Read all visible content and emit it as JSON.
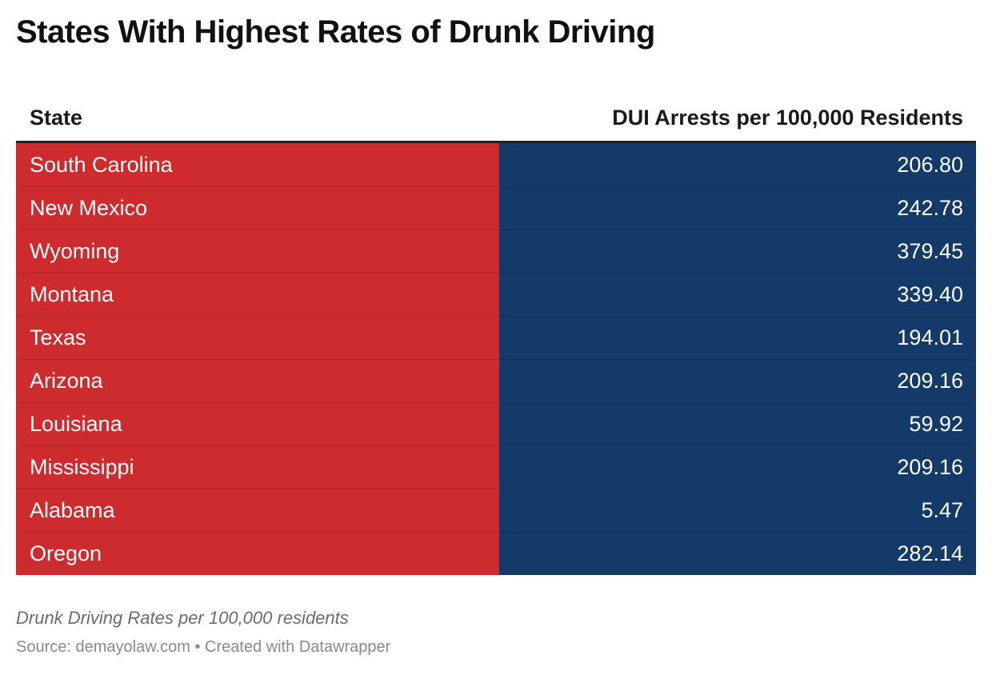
{
  "title": "States With Highest Rates of Drunk Driving",
  "colors": {
    "state_column_bg": "#ce2b2e",
    "value_column_bg": "#133a69",
    "header_rule": "#222222"
  },
  "chart_data": {
    "type": "table",
    "title": "States With Highest Rates of Drunk Driving",
    "columns": [
      "State",
      "DUI Arrests per 100,000 Residents"
    ],
    "rows": [
      {
        "state": "South Carolina",
        "value": "206.80"
      },
      {
        "state": "New Mexico",
        "value": "242.78"
      },
      {
        "state": "Wyoming",
        "value": "379.45"
      },
      {
        "state": "Montana",
        "value": "339.40"
      },
      {
        "state": "Texas",
        "value": "194.01"
      },
      {
        "state": "Arizona",
        "value": "209.16"
      },
      {
        "state": "Louisiana",
        "value": "59.92"
      },
      {
        "state": "Mississippi",
        "value": "209.16"
      },
      {
        "state": "Alabama",
        "value": "5.47"
      },
      {
        "state": "Oregon",
        "value": "282.14"
      }
    ]
  },
  "notes": "Drunk Driving Rates per 100,000 residents",
  "source": "Source: demayolaw.com • Created with Datawrapper"
}
